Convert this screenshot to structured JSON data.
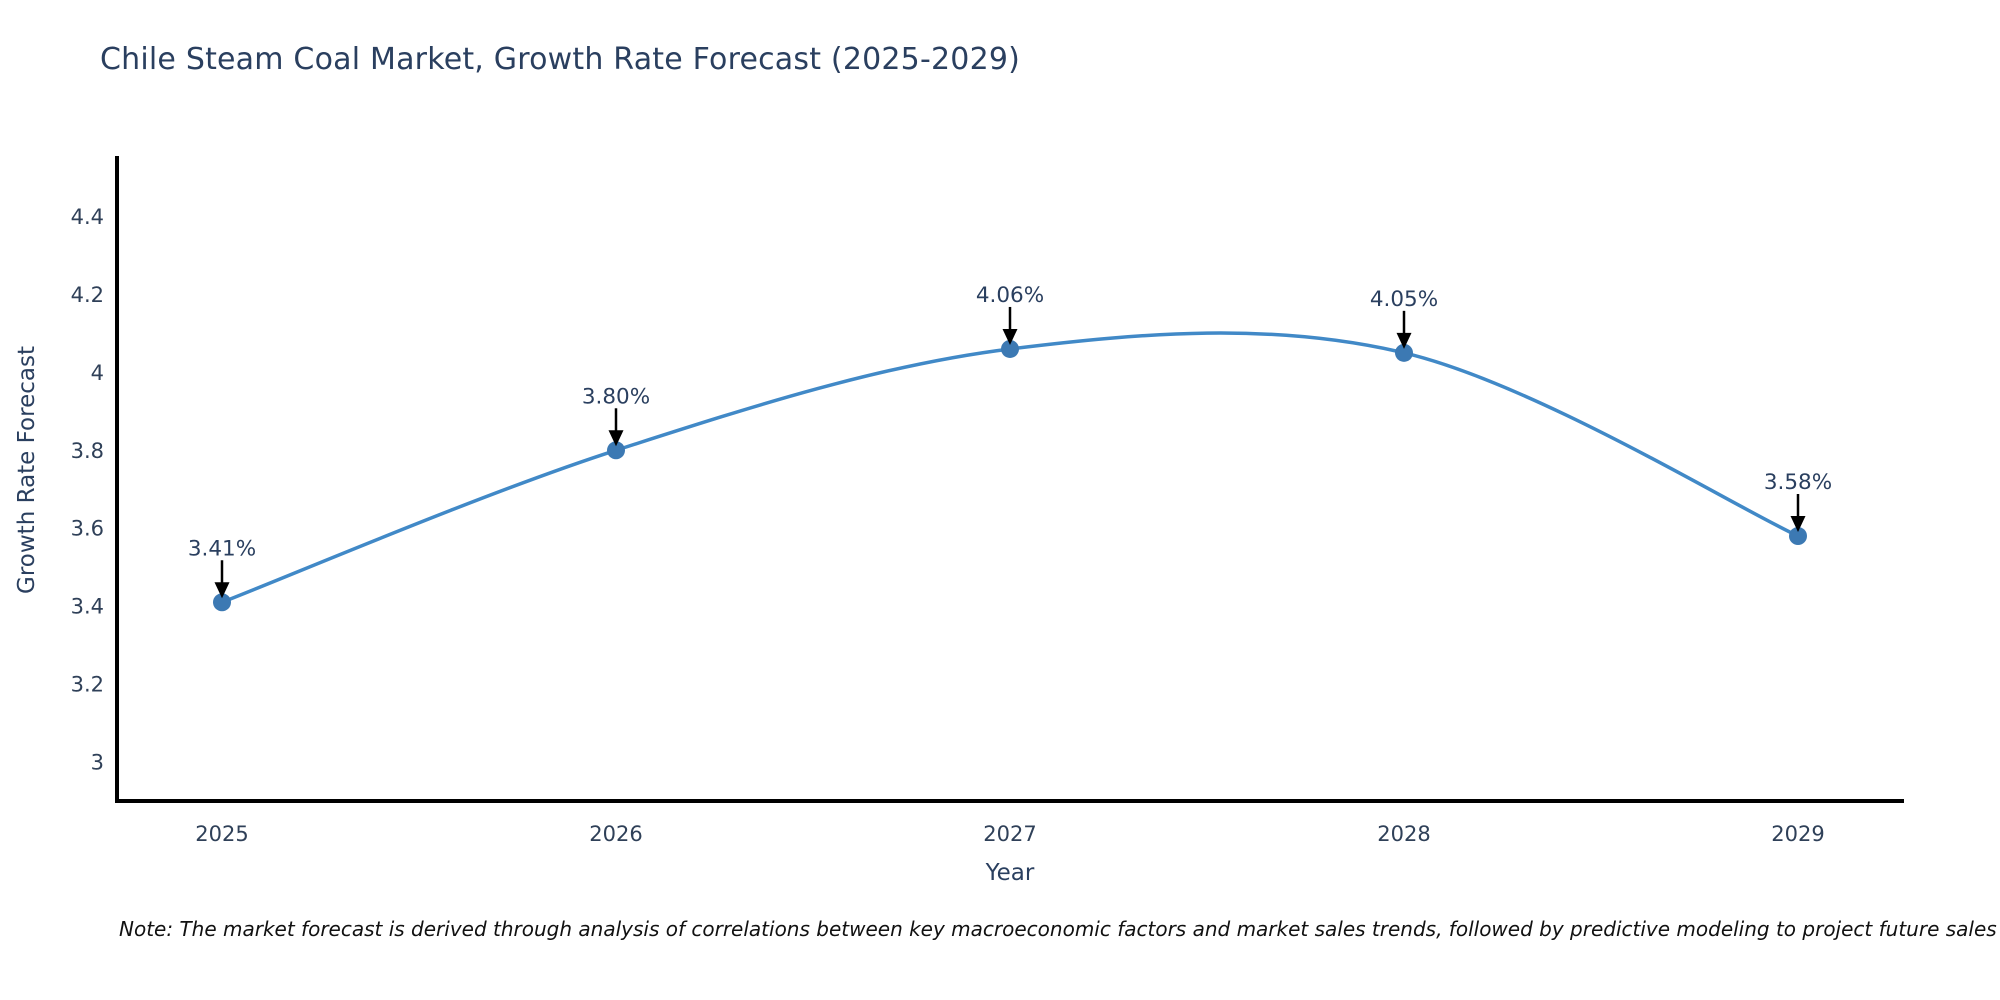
{
  "title": "Chile Steam Coal Market, Growth Rate Forecast (2025-2029)",
  "note": "Note: The market forecast is derived through analysis of correlations between key macroeconomic factors and market sales trends, followed by predictive modeling to project future sales",
  "chart_data": {
    "type": "line",
    "title": "Chile Steam Coal Market, Growth Rate Forecast (2025-2029)",
    "xlabel": "Year",
    "ylabel": "Growth Rate Forecast",
    "categories": [
      "2025",
      "2026",
      "2027",
      "2028",
      "2029"
    ],
    "series": [
      {
        "name": "Growth Rate Forecast",
        "values": [
          3.41,
          3.8,
          4.06,
          4.05,
          3.58
        ]
      }
    ],
    "point_labels": [
      "3.41%",
      "3.80%",
      "4.06%",
      "4.05%",
      "3.58%"
    ],
    "yticks": [
      3,
      3.2,
      3.4,
      3.6,
      3.8,
      4,
      4.2,
      4.4
    ],
    "ytick_labels": [
      "3",
      "3.2",
      "3.4",
      "3.6",
      "3.8",
      "4",
      "4.2",
      "4.4"
    ],
    "ylim": [
      2.9,
      4.55
    ],
    "line_shape": "spline",
    "grid": false,
    "legend": "none",
    "annotations": "value labels with black arrows pointing to each point",
    "colors": {
      "line": "#4189c7",
      "marker": "#3c79b3",
      "text": "#2f4058",
      "axis": "#000000",
      "arrow": "#000000",
      "background": "#ffffff"
    }
  }
}
